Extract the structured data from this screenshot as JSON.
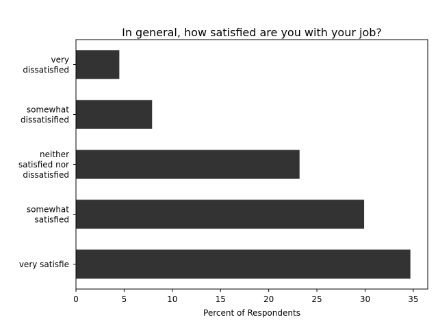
{
  "chart_data": {
    "type": "bar",
    "orientation": "horizontal",
    "title": "In general, how satisfied are you with your job?",
    "xlabel": "Percent of Respondents",
    "ylabel": "",
    "categories": [
      [
        "very",
        "dissatisfied"
      ],
      [
        "somewhat",
        "dissatisified"
      ],
      [
        "neither",
        "satisfied nor",
        "dissatisfied"
      ],
      [
        "somewhat",
        "satisfied"
      ],
      [
        "very satisfie"
      ]
    ],
    "values": [
      4.5,
      7.9,
      23.2,
      29.9,
      34.7
    ],
    "xlim": [
      0,
      36.5
    ],
    "xticks": [
      0,
      5,
      10,
      15,
      20,
      25,
      30,
      35
    ],
    "xtick_labels": [
      "0",
      "5",
      "10",
      "15",
      "20",
      "25",
      "30",
      "35"
    ],
    "bar_color": "#333333",
    "grid": false,
    "legend": "none"
  }
}
